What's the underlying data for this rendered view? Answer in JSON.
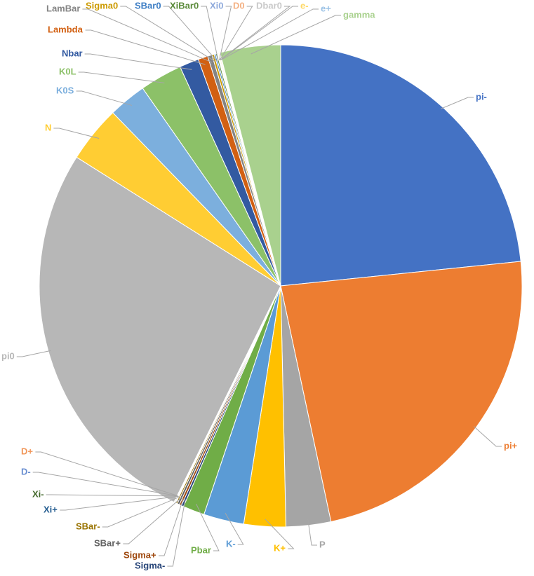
{
  "chart_data": {
    "type": "pie",
    "categories": [
      "pi-",
      "pi+",
      "P",
      "K+",
      "K-",
      "Pbar",
      "Sigma-",
      "Sigma+",
      "SBar+",
      "SBar-",
      "Xi+",
      "Xi-",
      "D-",
      "D+",
      "pi0",
      "N",
      "K0S",
      "K0L",
      "Nbar",
      "Lambda",
      "LamBar",
      "Sigma0",
      "SBar0",
      "XiBar0",
      "Xi0",
      "D0",
      "Dbar0",
      "e-",
      "e+",
      "gamma"
    ],
    "values": [
      23.4,
      23.3,
      3.0,
      2.8,
      2.7,
      1.45,
      0.15,
      0.15,
      0.15,
      0.1,
      0.05,
      0.05,
      0.02,
      0.02,
      26.7,
      3.8,
      2.55,
      2.85,
      1.3,
      0.65,
      0.3,
      0.15,
      0.1,
      0.1,
      0.05,
      0.02,
      0.02,
      0.06,
      0.05,
      4.05
    ],
    "colors": [
      "#4472c4",
      "#ed7d31",
      "#a5a5a5",
      "#ffc000",
      "#5b9bd5",
      "#70ad47",
      "#264478",
      "#9e480e",
      "#636363",
      "#997300",
      "#255e91",
      "#43682b",
      "#698ed0",
      "#f1975a",
      "#b7b7b7",
      "#ffcd33",
      "#7cafdd",
      "#8cc168",
      "#335aa1",
      "#d26012",
      "#848484",
      "#cc9a00",
      "#3c7dc4",
      "#5a8a39",
      "#8faadc",
      "#f4b183",
      "#c9c9c9",
      "#ffd966",
      "#9dc3e6",
      "#a9d18e"
    ]
  }
}
